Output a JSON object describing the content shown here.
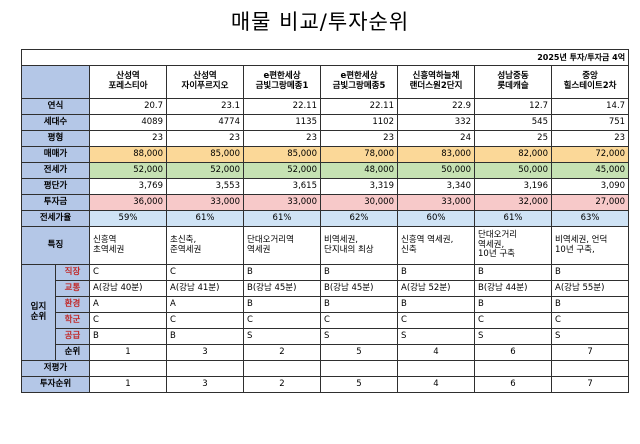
{
  "title": "매물 비교/투자순위",
  "note": "2025년 투자/투자금 4억",
  "properties": [
    "산성역\n포레스티아",
    "산성역\n자이푸르지오",
    "e편한세상\n금빛그랑메종1",
    "e편한세상\n금빛그랑메종5",
    "신흥역하늘채\n랜더스원2단지",
    "성남중동\n롯데캐슬",
    "중앙\n힐스테이트2차"
  ],
  "rows": [
    {
      "label": "연식",
      "style": "",
      "values": [
        "20.7",
        "23.1",
        "22.11",
        "22.11",
        "22.9",
        "12.7",
        "14.7"
      ]
    },
    {
      "label": "세대수",
      "style": "",
      "values": [
        "4089",
        "4774",
        "1135",
        "1102",
        "332",
        "545",
        "751"
      ]
    },
    {
      "label": "평형",
      "style": "",
      "values": [
        "23",
        "23",
        "23",
        "23",
        "24",
        "25",
        "23"
      ]
    },
    {
      "label": "매매가",
      "style": "row-orange",
      "values": [
        "88,000",
        "85,000",
        "85,000",
        "78,000",
        "83,000",
        "82,000",
        "72,000"
      ]
    },
    {
      "label": "전세가",
      "style": "row-green",
      "values": [
        "52,000",
        "52,000",
        "52,000",
        "48,000",
        "50,000",
        "50,000",
        "45,000"
      ]
    },
    {
      "label": "평단가",
      "style": "",
      "values": [
        "3,769",
        "3,553",
        "3,615",
        "3,319",
        "3,340",
        "3,196",
        "3,090"
      ]
    },
    {
      "label": "투자금",
      "style": "row-pink",
      "values": [
        "36,000",
        "33,000",
        "33,000",
        "30,000",
        "33,000",
        "32,000",
        "27,000"
      ]
    },
    {
      "label": "전세가율",
      "style": "row-blue",
      "values": [
        "59%",
        "61%",
        "61%",
        "62%",
        "60%",
        "61%",
        "63%"
      ]
    }
  ],
  "features": {
    "label": "특징",
    "values": [
      "신흥역\n초역세권",
      "초신축,\n준역세권",
      "단대오거리역\n역세권",
      "비역세권,\n단지내의 최상",
      "신흥역 역세권,\n신축",
      "단대오거리\n역세권,\n10년 구축",
      "비역세권, 언덕\n10년 구축,"
    ]
  },
  "location": {
    "group_label": "입지\n순위",
    "items": [
      {
        "label": "직장",
        "values": [
          "C",
          "C",
          "B",
          "B",
          "B",
          "B",
          "B"
        ]
      },
      {
        "label": "교통",
        "values": [
          "A(강남 40분)",
          "A(강남 41분)",
          "B(강남 45분)",
          "B(강남 45분)",
          "A(강남 52분)",
          "B(강남 44분)",
          "A(강남 55분)"
        ]
      },
      {
        "label": "환경",
        "values": [
          "A",
          "A",
          "B",
          "B",
          "B",
          "B",
          "B"
        ]
      },
      {
        "label": "학군",
        "values": [
          "C",
          "C",
          "C",
          "C",
          "C",
          "C",
          "C"
        ]
      },
      {
        "label": "공급",
        "values": [
          "B",
          "B",
          "S",
          "S",
          "S",
          "S",
          "S"
        ]
      },
      {
        "label": "순위",
        "values": [
          "1",
          "3",
          "2",
          "5",
          "4",
          "6",
          "7"
        ]
      }
    ]
  },
  "undervalued": {
    "label": "저평가",
    "values": [
      "",
      "",
      "",
      "",
      "",
      "",
      ""
    ]
  },
  "investment_rank": {
    "label": "투자순위",
    "values": [
      "1",
      "3",
      "2",
      "5",
      "4",
      "6",
      "7"
    ]
  },
  "colors": {
    "label_bg": "#b4c7e7",
    "price": "#fbd898",
    "jeonse": "#c6e2b3",
    "invest": "#f7c9c9",
    "ratio": "#cfe3f5",
    "sub_label_text": "#c02a2a"
  }
}
